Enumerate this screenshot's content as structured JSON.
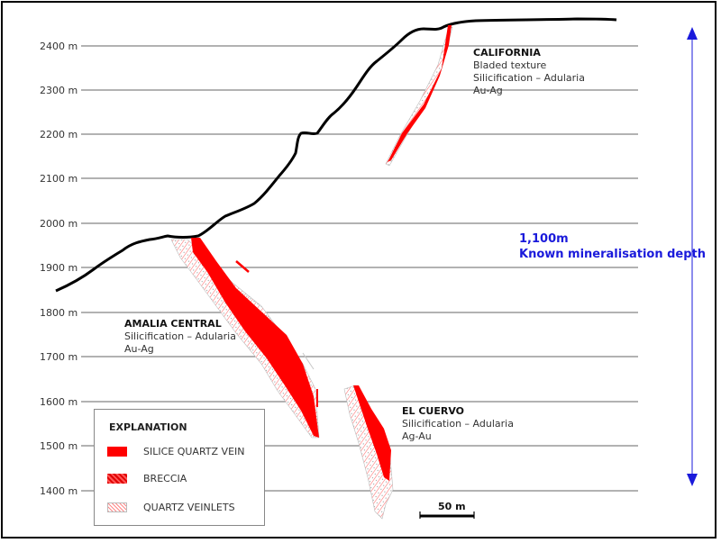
{
  "elevations": [
    "2400 m",
    "2300 m",
    "2200 m",
    "2100 m",
    "2000 m",
    "1900 m",
    "1800 m",
    "1700 m",
    "1600 m",
    "1500 m",
    "1400 m"
  ],
  "zones": {
    "california": {
      "title": "CALIFORNIA",
      "lines": [
        "Bladed texture",
        "Silicification – Adularia",
        "Au-Ag"
      ]
    },
    "amalia_central": {
      "title": "AMALIA CENTRAL",
      "lines": [
        "Silicification – Adularia",
        "Au-Ag"
      ]
    },
    "el_cuervo": {
      "title": "EL CUERVO",
      "lines": [
        "Silicification – Adularia",
        "Ag-Au"
      ]
    }
  },
  "depth_annotation": {
    "value": "1,100m",
    "label": "Known mineralisation depth"
  },
  "legend": {
    "title": "EXPLANATION",
    "items": [
      {
        "label": "SILICE QUARTZ VEIN",
        "swatch": "solid-red"
      },
      {
        "label": "BRECCIA",
        "swatch": "hatched-red"
      },
      {
        "label": "QUARTZ VEINLETS",
        "swatch": "dotted-red-outline"
      }
    ]
  },
  "scale_bar": {
    "label": "50 m"
  },
  "colors": {
    "vein": "#ff0000",
    "annotation": "#1a1adb",
    "topography": "#000000"
  }
}
